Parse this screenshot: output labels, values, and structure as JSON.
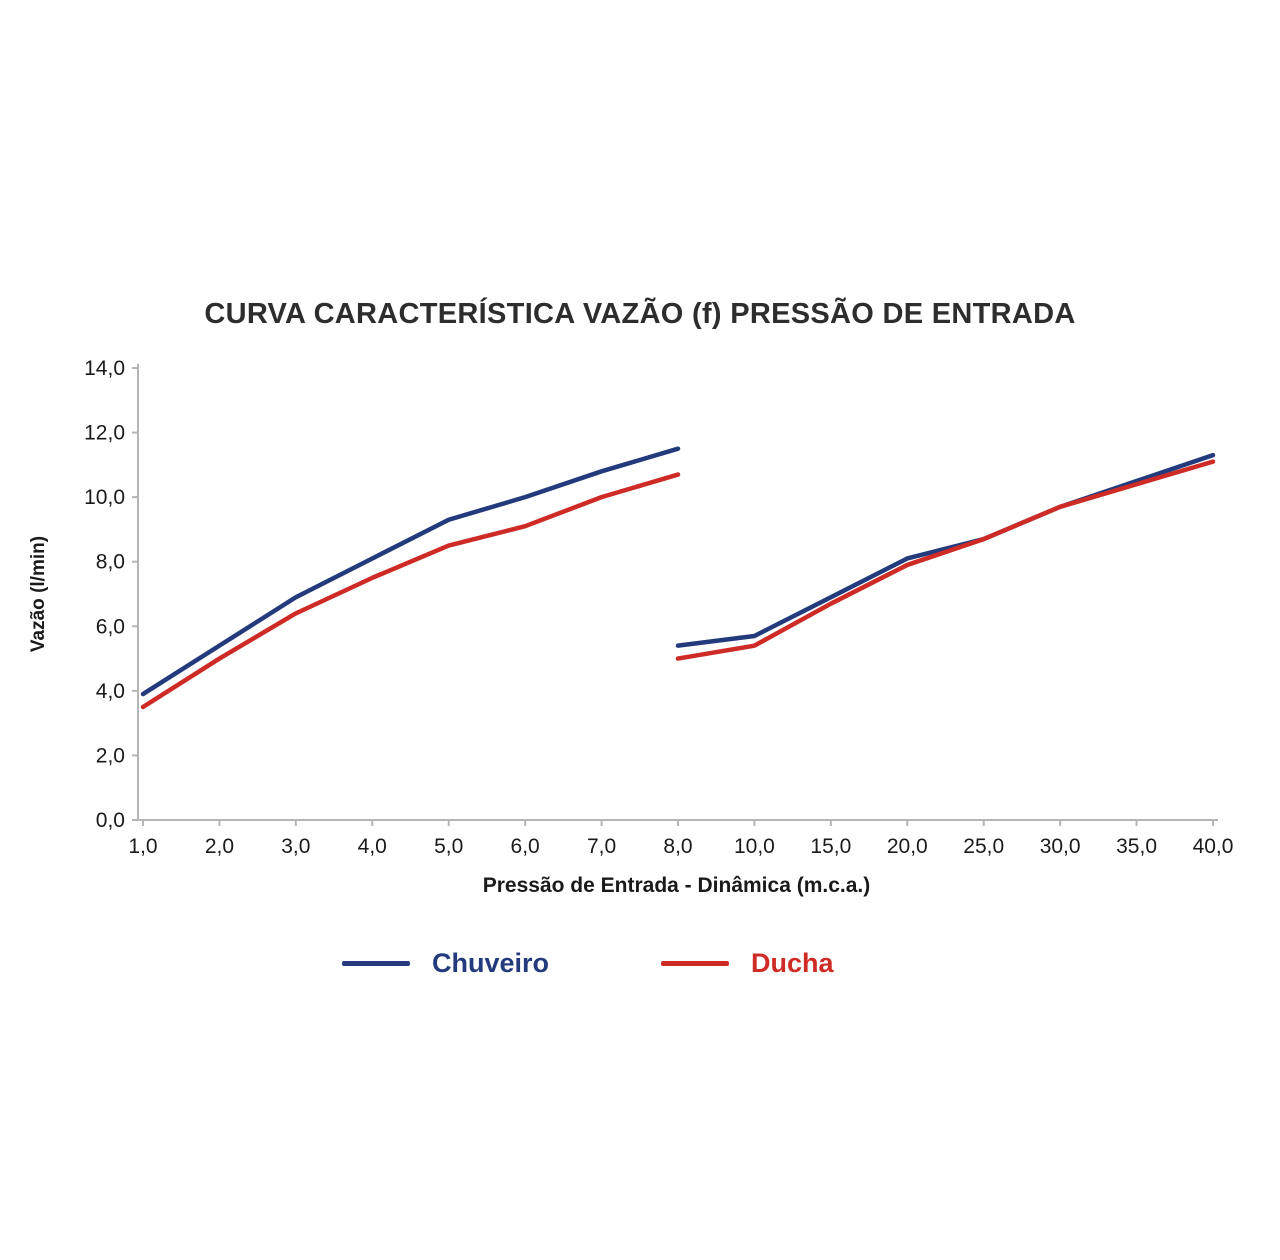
{
  "chart_data": {
    "type": "line",
    "title": "CURVA CARACTERÍSTICA VAZÃO (f) PRESSÃO DE ENTRADA",
    "xlabel": "Pressão de Entrada - Dinâmica (m.c.a.)",
    "ylabel": "Vazão (l/min)",
    "x_ticks": [
      "1,0",
      "2,0",
      "3,0",
      "4,0",
      "5,0",
      "6,0",
      "7,0",
      "8,0",
      "10,0",
      "15,0",
      "20,0",
      "25,0",
      "30,0",
      "35,0",
      "40,0"
    ],
    "y_ticks": [
      "0,0",
      "2,0",
      "4,0",
      "6,0",
      "8,0",
      "10,0",
      "12,0",
      "14,0"
    ],
    "ylim": [
      0,
      14
    ],
    "grid": false,
    "legend_position": "bottom",
    "axis_note": "categorical x axis with equal spacing and a scale break between 8,0 and 10,0; both curves restart after the break",
    "series": [
      {
        "name": "Chuveiro",
        "color": "#233b7d",
        "segments": [
          {
            "x": [
              "1,0",
              "2,0",
              "3,0",
              "4,0",
              "5,0",
              "6,0",
              "7,0",
              "8,0"
            ],
            "values": [
              3.9,
              5.4,
              6.9,
              8.1,
              9.3,
              10.0,
              10.8,
              11.5
            ]
          },
          {
            "x": [
              "8,0",
              "10,0",
              "15,0",
              "20,0",
              "25,0",
              "30,0",
              "35,0",
              "40,0"
            ],
            "values": [
              5.4,
              5.7,
              6.9,
              8.1,
              8.7,
              9.7,
              10.5,
              11.3
            ]
          }
        ]
      },
      {
        "name": "Ducha",
        "color": "#ce2b26",
        "segments": [
          {
            "x": [
              "1,0",
              "2,0",
              "3,0",
              "4,0",
              "5,0",
              "6,0",
              "7,0",
              "8,0"
            ],
            "values": [
              3.5,
              5.0,
              6.4,
              7.5,
              8.5,
              9.1,
              10.0,
              10.7
            ]
          },
          {
            "x": [
              "8,0",
              "10,0",
              "15,0",
              "20,0",
              "25,0",
              "30,0",
              "35,0",
              "40,0"
            ],
            "values": [
              5.0,
              5.4,
              6.7,
              7.9,
              8.7,
              9.7,
              10.4,
              11.1
            ]
          }
        ]
      }
    ],
    "axis_color": "#b5b5b5",
    "tick_label_color": "#1a1a1a"
  }
}
